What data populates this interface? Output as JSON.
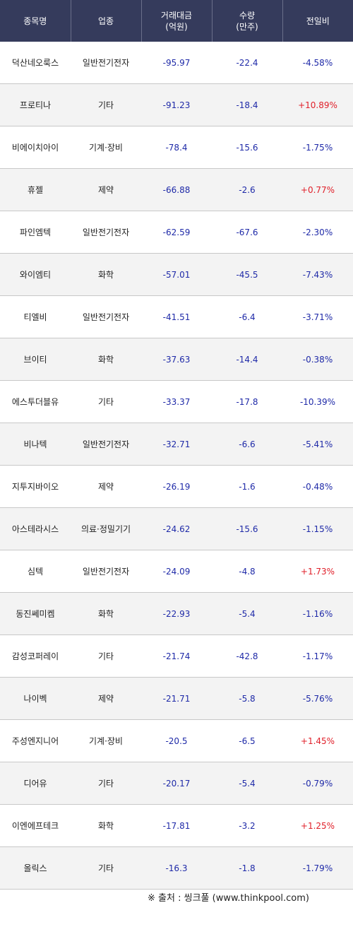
{
  "header": {
    "name": "종목명",
    "industry": "업종",
    "amount_line1": "거래대금",
    "amount_line2": "(억원)",
    "qty_line1": "수량",
    "qty_line2": "(만주)",
    "change": "전일비"
  },
  "colors": {
    "header_bg": "#353b5c",
    "negative": "#1f2aa8",
    "positive": "#e0202a"
  },
  "rows": [
    {
      "name": "덕산네오룩스",
      "industry": "일반전기전자",
      "amount": "-95.97",
      "qty": "-22.4",
      "change": "-4.58%",
      "dir": "neg"
    },
    {
      "name": "프로티나",
      "industry": "기타",
      "amount": "-91.23",
      "qty": "-18.4",
      "change": "+10.89%",
      "dir": "pos"
    },
    {
      "name": "비에이치아이",
      "industry": "기계·장비",
      "amount": "-78.4",
      "qty": "-15.6",
      "change": "-1.75%",
      "dir": "neg"
    },
    {
      "name": "휴젤",
      "industry": "제약",
      "amount": "-66.88",
      "qty": "-2.6",
      "change": "+0.77%",
      "dir": "pos"
    },
    {
      "name": "파인엠텍",
      "industry": "일반전기전자",
      "amount": "-62.59",
      "qty": "-67.6",
      "change": "-2.30%",
      "dir": "neg"
    },
    {
      "name": "와이엠티",
      "industry": "화학",
      "amount": "-57.01",
      "qty": "-45.5",
      "change": "-7.43%",
      "dir": "neg"
    },
    {
      "name": "티엘비",
      "industry": "일반전기전자",
      "amount": "-41.51",
      "qty": "-6.4",
      "change": "-3.71%",
      "dir": "neg"
    },
    {
      "name": "브이티",
      "industry": "화학",
      "amount": "-37.63",
      "qty": "-14.4",
      "change": "-0.38%",
      "dir": "neg"
    },
    {
      "name": "에스투더블유",
      "industry": "기타",
      "amount": "-33.37",
      "qty": "-17.8",
      "change": "-10.39%",
      "dir": "neg"
    },
    {
      "name": "비나텍",
      "industry": "일반전기전자",
      "amount": "-32.71",
      "qty": "-6.6",
      "change": "-5.41%",
      "dir": "neg"
    },
    {
      "name": "지투지바이오",
      "industry": "제약",
      "amount": "-26.19",
      "qty": "-1.6",
      "change": "-0.48%",
      "dir": "neg"
    },
    {
      "name": "아스테라시스",
      "industry": "의료·정밀기기",
      "amount": "-24.62",
      "qty": "-15.6",
      "change": "-1.15%",
      "dir": "neg"
    },
    {
      "name": "심텍",
      "industry": "일반전기전자",
      "amount": "-24.09",
      "qty": "-4.8",
      "change": "+1.73%",
      "dir": "pos"
    },
    {
      "name": "동진쎄미켐",
      "industry": "화학",
      "amount": "-22.93",
      "qty": "-5.4",
      "change": "-1.16%",
      "dir": "neg"
    },
    {
      "name": "감성코퍼레이",
      "industry": "기타",
      "amount": "-21.74",
      "qty": "-42.8",
      "change": "-1.17%",
      "dir": "neg"
    },
    {
      "name": "나이벡",
      "industry": "제약",
      "amount": "-21.71",
      "qty": "-5.8",
      "change": "-5.76%",
      "dir": "neg"
    },
    {
      "name": "주성엔지니어",
      "industry": "기계·장비",
      "amount": "-20.5",
      "qty": "-6.5",
      "change": "+1.45%",
      "dir": "pos"
    },
    {
      "name": "디어유",
      "industry": "기타",
      "amount": "-20.17",
      "qty": "-5.4",
      "change": "-0.79%",
      "dir": "neg"
    },
    {
      "name": "이엔에프테크",
      "industry": "화학",
      "amount": "-17.81",
      "qty": "-3.2",
      "change": "+1.25%",
      "dir": "pos"
    },
    {
      "name": "올릭스",
      "industry": "기타",
      "amount": "-16.3",
      "qty": "-1.8",
      "change": "-1.79%",
      "dir": "neg"
    }
  ],
  "source": "※ 출처 : 씽크풀 (www.thinkpool.com)"
}
